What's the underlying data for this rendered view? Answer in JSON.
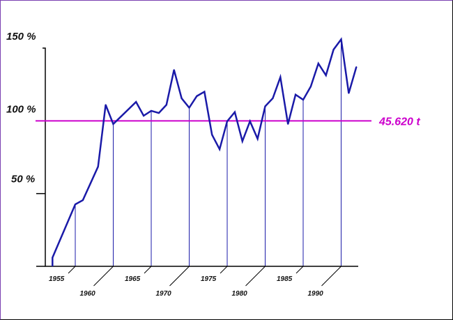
{
  "chart_data": {
    "type": "line",
    "title": "",
    "xlabel": "",
    "ylabel": "",
    "x": [
      1952,
      1955,
      1956,
      1957,
      1958,
      1959,
      1960,
      1963,
      1964,
      1965,
      1966,
      1967,
      1968,
      1969,
      1970,
      1971,
      1972,
      1973,
      1974,
      1975,
      1976,
      1977,
      1978,
      1979,
      1980,
      1981,
      1982,
      1983,
      1984,
      1985,
      1986,
      1987,
      1988,
      1989,
      1990,
      1991,
      1992
    ],
    "series": [
      {
        "values": [
          6,
          42.6,
          45.5,
          57,
          68.5,
          111,
          97.8,
          113,
          103.5,
          106.9,
          105.4,
          111,
          135,
          115.5,
          109,
          117,
          120,
          90.5,
          80.5,
          99.7,
          106,
          86,
          99.7,
          87.7,
          110,
          115.5,
          130,
          97.8,
          118,
          114.5,
          123.6,
          139.4,
          131.3,
          149,
          156,
          119,
          137
        ],
        "color": "#1a1aa8"
      }
    ],
    "xlim": [
      1949.5,
      1994
    ],
    "ylim": [
      0,
      150
    ],
    "y_ticks": [
      {
        "value": 50,
        "label": "50 %"
      },
      {
        "value": 100,
        "label": "100 %"
      },
      {
        "value": 150,
        "label": "150 %"
      }
    ],
    "x_ticks": [
      {
        "value": 1955,
        "label": "1955"
      },
      {
        "value": 1960,
        "label": "1960"
      },
      {
        "value": 1965,
        "label": "1965"
      },
      {
        "value": 1970,
        "label": "1970"
      },
      {
        "value": 1975,
        "label": "1975"
      },
      {
        "value": 1980,
        "label": "1980"
      },
      {
        "value": 1985,
        "label": "1985"
      },
      {
        "value": 1990,
        "label": "1990"
      }
    ],
    "reference_line": {
      "value": 100,
      "label": "45.620 t",
      "color": "#cc00cc"
    },
    "grid": false,
    "legend": "none"
  }
}
